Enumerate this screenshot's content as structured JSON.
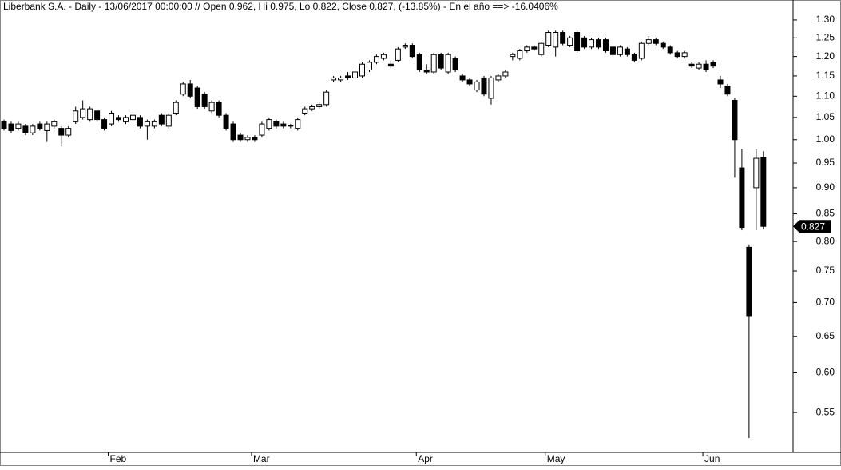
{
  "chart_data": {
    "type": "candlestick",
    "title": "Liberbank S.A. - Daily - 13/06/2017 00:00:00 // Open 0.962, Hi 0.975, Lo 0.822, Close 0.827, (-13.85%) - En el año ==> -16.0406%",
    "log_scale": true,
    "ylim": [
      0.504,
      1.358
    ],
    "yticks": [
      0.55,
      {
        "value": 0.6,
        "label": "0.60"
      },
      0.65,
      {
        "value": 0.7,
        "label": "0.70"
      },
      0.75,
      {
        "value": 0.8,
        "label": "0.80"
      },
      0.85,
      {
        "value": 0.9,
        "label": "0.90"
      },
      0.95,
      {
        "value": 1.0,
        "label": "1.00"
      },
      1.05,
      {
        "value": 1.1,
        "label": "1.10"
      },
      1.15,
      {
        "value": 1.2,
        "label": "1.20"
      },
      1.25,
      {
        "value": 1.3,
        "label": "1.30"
      }
    ],
    "last_value": 0.827,
    "up_color": "#ffffff",
    "down_color": "#000000",
    "categories": [
      null,
      null,
      null,
      null,
      null,
      null,
      null,
      null,
      null,
      null,
      null,
      null,
      null,
      null,
      null,
      "Feb",
      null,
      null,
      null,
      null,
      null,
      null,
      null,
      null,
      null,
      null,
      null,
      null,
      null,
      null,
      null,
      null,
      null,
      null,
      null,
      "Mar",
      null,
      null,
      null,
      null,
      null,
      null,
      null,
      null,
      null,
      null,
      null,
      null,
      null,
      null,
      null,
      null,
      null,
      null,
      null,
      null,
      null,
      null,
      "Apr",
      null,
      null,
      null,
      null,
      null,
      null,
      null,
      null,
      null,
      null,
      null,
      null,
      null,
      null,
      null,
      null,
      null,
      "May",
      null,
      null,
      null,
      null,
      null,
      null,
      null,
      null,
      null,
      null,
      null,
      null,
      null,
      null,
      null,
      null,
      null,
      null,
      null,
      null,
      null,
      "Jun",
      null,
      null,
      null,
      null,
      null,
      null,
      null,
      null
    ],
    "open": [
      1.04,
      1.035,
      1.025,
      1.03,
      1.015,
      1.035,
      1.02,
      1.03,
      1.025,
      1.01,
      1.04,
      1.05,
      1.045,
      1.065,
      1.045,
      1.035,
      1.05,
      1.04,
      1.045,
      1.05,
      1.03,
      1.03,
      1.055,
      1.03,
      1.06,
      1.105,
      1.13,
      1.12,
      1.105,
      1.065,
      1.085,
      1.055,
      1.035,
      1.01,
      1.0,
      1.005,
      1.01,
      1.025,
      1.04,
      1.035,
      1.032,
      1.025,
      1.06,
      1.07,
      1.075,
      1.08,
      1.14,
      1.14,
      1.15,
      1.145,
      1.15,
      1.165,
      1.185,
      1.195,
      1.18,
      1.19,
      1.225,
      1.23,
      1.205,
      1.165,
      1.16,
      1.205,
      1.16,
      1.195,
      1.15,
      1.14,
      1.115,
      1.145,
      1.095,
      1.14,
      1.15,
      1.2,
      1.195,
      1.215,
      1.225,
      1.205,
      1.23,
      1.225,
      1.265,
      1.23,
      1.265,
      1.25,
      1.225,
      1.245,
      1.245,
      1.225,
      1.205,
      1.22,
      1.205,
      1.195,
      1.235,
      1.245,
      1.235,
      1.225,
      1.21,
      1.2,
      1.18,
      1.17,
      1.18,
      1.185,
      1.14,
      1.125,
      1.09,
      0.94,
      0.79,
      0.9,
      0.962
    ],
    "high": [
      1.045,
      1.04,
      1.04,
      1.035,
      1.035,
      1.04,
      1.04,
      1.045,
      1.03,
      1.03,
      1.075,
      1.09,
      1.075,
      1.07,
      1.05,
      1.065,
      1.055,
      1.055,
      1.06,
      1.055,
      1.045,
      1.045,
      1.06,
      1.06,
      1.09,
      1.135,
      1.14,
      1.125,
      1.11,
      1.09,
      1.09,
      1.06,
      1.04,
      1.015,
      1.01,
      1.01,
      1.04,
      1.05,
      1.045,
      1.04,
      1.035,
      1.05,
      1.075,
      1.08,
      1.085,
      1.115,
      1.15,
      1.15,
      1.16,
      1.165,
      1.185,
      1.19,
      1.205,
      1.21,
      1.19,
      1.225,
      1.235,
      1.235,
      1.21,
      1.18,
      1.21,
      1.21,
      1.21,
      1.2,
      1.155,
      1.145,
      1.14,
      1.15,
      1.15,
      1.155,
      1.165,
      1.21,
      1.22,
      1.23,
      1.23,
      1.24,
      1.27,
      1.27,
      1.27,
      1.255,
      1.27,
      1.255,
      1.25,
      1.25,
      1.25,
      1.23,
      1.23,
      1.225,
      1.21,
      1.24,
      1.255,
      1.25,
      1.24,
      1.23,
      1.215,
      1.215,
      1.185,
      1.185,
      1.19,
      1.19,
      1.15,
      1.13,
      1.095,
      0.98,
      0.795,
      0.98,
      0.975
    ],
    "low": [
      1.02,
      1.015,
      1.02,
      1.01,
      1.01,
      1.02,
      0.995,
      1.025,
      0.985,
      1.005,
      1.035,
      1.045,
      1.04,
      1.04,
      1.02,
      1.03,
      1.04,
      1.035,
      1.04,
      1.025,
      1.0,
      1.025,
      1.03,
      1.025,
      1.055,
      1.1,
      1.095,
      1.07,
      1.07,
      1.06,
      1.05,
      1.02,
      0.995,
      0.995,
      0.995,
      0.995,
      1.005,
      1.02,
      1.025,
      1.025,
      1.025,
      1.02,
      1.055,
      1.065,
      1.07,
      1.075,
      1.135,
      1.135,
      1.14,
      1.14,
      1.145,
      1.16,
      1.18,
      1.19,
      1.17,
      1.185,
      1.22,
      1.195,
      1.16,
      1.155,
      1.155,
      1.165,
      1.155,
      1.16,
      1.135,
      1.125,
      1.11,
      1.1,
      1.08,
      1.135,
      1.145,
      1.19,
      1.19,
      1.21,
      1.215,
      1.2,
      1.225,
      1.2,
      1.23,
      1.225,
      1.21,
      1.22,
      1.22,
      1.22,
      1.21,
      1.2,
      1.2,
      1.2,
      1.185,
      1.19,
      1.23,
      1.23,
      1.22,
      1.205,
      1.195,
      1.195,
      1.17,
      1.165,
      1.16,
      1.17,
      1.12,
      1.1,
      0.92,
      0.82,
      0.52,
      0.82,
      0.822
    ],
    "close": [
      1.025,
      1.02,
      1.035,
      1.015,
      1.03,
      1.025,
      1.035,
      1.04,
      1.01,
      1.025,
      1.065,
      1.07,
      1.07,
      1.045,
      1.025,
      1.06,
      1.045,
      1.05,
      1.055,
      1.03,
      1.04,
      1.04,
      1.035,
      1.055,
      1.085,
      1.13,
      1.1,
      1.075,
      1.075,
      1.085,
      1.055,
      1.025,
      1.0,
      1.0,
      1.005,
      1.0,
      1.035,
      1.045,
      1.03,
      1.03,
      1.03,
      1.045,
      1.07,
      1.075,
      1.08,
      1.11,
      1.145,
      1.145,
      1.145,
      1.16,
      1.18,
      1.185,
      1.2,
      1.205,
      1.175,
      1.22,
      1.23,
      1.2,
      1.165,
      1.16,
      1.205,
      1.17,
      1.205,
      1.165,
      1.14,
      1.13,
      1.135,
      1.105,
      1.145,
      1.15,
      1.16,
      1.205,
      1.215,
      1.225,
      1.22,
      1.235,
      1.265,
      1.265,
      1.235,
      1.25,
      1.215,
      1.225,
      1.245,
      1.225,
      1.215,
      1.205,
      1.225,
      1.205,
      1.19,
      1.235,
      1.245,
      1.235,
      1.225,
      1.21,
      1.2,
      1.21,
      1.175,
      1.18,
      1.165,
      1.175,
      1.13,
      1.105,
      1.0,
      0.825,
      0.68,
      0.96,
      0.827
    ]
  }
}
